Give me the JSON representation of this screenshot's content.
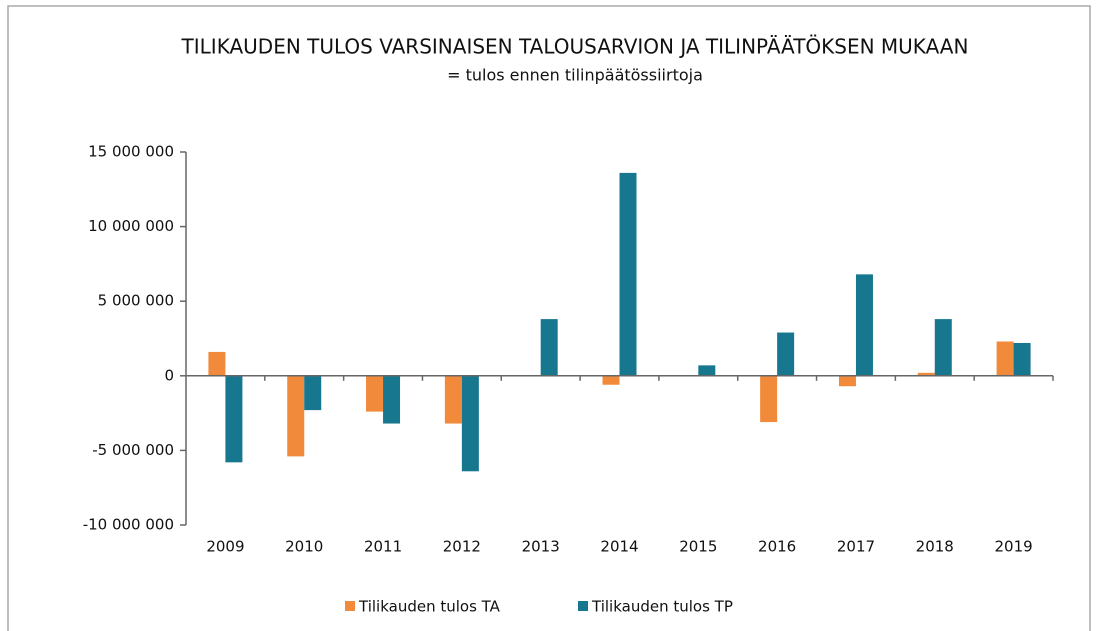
{
  "chart_data": {
    "type": "bar",
    "title": "TILIKAUDEN TULOS VARSINAISEN TALOUSARVION JA TILINPÄÄTÖKSEN MUKAAN",
    "subtitle": "= tulos ennen tilinpäätössiirtoja",
    "categories": [
      "2009",
      "2010",
      "2011",
      "2012",
      "2013",
      "2014",
      "2015",
      "2016",
      "2017",
      "2018",
      "2019"
    ],
    "series": [
      {
        "name": "Tilikauden tulos TA",
        "color": "#f28a3c",
        "values": [
          1600000,
          -5400000,
          -2400000,
          -3200000,
          0,
          -600000,
          0,
          -3100000,
          -700000,
          200000,
          2300000
        ]
      },
      {
        "name": "Tilikauden tulos TP",
        "color": "#17778f",
        "values": [
          -5800000,
          -2300000,
          -3200000,
          -6400000,
          3800000,
          13600000,
          700000,
          2900000,
          6800000,
          3800000,
          2200000
        ]
      }
    ],
    "ylim": [
      -10000000,
      15000000
    ],
    "yticks": [
      {
        "value": -10000000,
        "label": "-10 000 000"
      },
      {
        "value": -5000000,
        "label": "-5 000 000"
      },
      0,
      {
        "value": 5000000,
        "label": "5 000 000"
      },
      {
        "value": 10000000,
        "label": "10 000 000"
      },
      {
        "value": 15000000,
        "label": "15 000 000"
      }
    ],
    "legend": "bottom"
  }
}
